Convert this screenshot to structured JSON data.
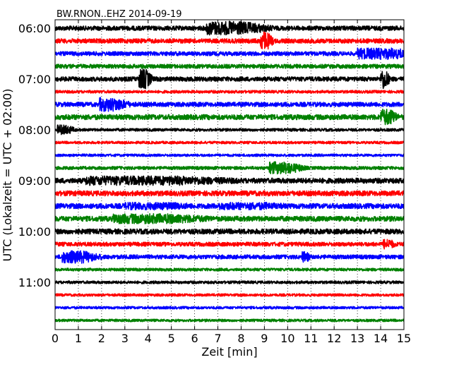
{
  "chart_data": {
    "type": "line",
    "title": "BW.RNON..EHZ 2014-09-19",
    "xlabel": "Zeit  [min]",
    "ylabel": "UTC (Lokalzeit = UTC + 02:00)",
    "xlim": [
      0,
      15
    ],
    "x_ticks": [
      0,
      1,
      2,
      3,
      4,
      5,
      6,
      7,
      8,
      9,
      10,
      11,
      12,
      13,
      14,
      15
    ],
    "y_tick_labels": [
      "06:00",
      "07:00",
      "08:00",
      "09:00",
      "10:00",
      "11:00"
    ],
    "start_time": "06:00",
    "trace_interval_min": 15,
    "grid": "vertical dotted",
    "color_cycle": [
      "#000000",
      "#ff0000",
      "#0000ff",
      "#008000"
    ],
    "traces": [
      {
        "start": "06:00",
        "color": "#000000",
        "amp": 0.35,
        "events": [
          [
            6.5,
            8.0,
            1.1
          ]
        ]
      },
      {
        "start": "06:15",
        "color": "#ff0000",
        "amp": 0.35,
        "events": [
          [
            8.8,
            9.1,
            1.5
          ]
        ]
      },
      {
        "start": "06:30",
        "color": "#0000ff",
        "amp": 0.32,
        "events": [
          [
            13.0,
            14.5,
            0.9
          ]
        ]
      },
      {
        "start": "06:45",
        "color": "#008000",
        "amp": 0.32,
        "events": []
      },
      {
        "start": "07:00",
        "color": "#000000",
        "amp": 0.35,
        "events": [
          [
            3.6,
            3.9,
            1.6
          ],
          [
            14.0,
            14.2,
            1.6
          ]
        ]
      },
      {
        "start": "07:15",
        "color": "#ff0000",
        "amp": 0.22,
        "events": []
      },
      {
        "start": "07:30",
        "color": "#0000ff",
        "amp": 0.35,
        "events": [
          [
            1.9,
            2.6,
            1.1
          ]
        ]
      },
      {
        "start": "07:45",
        "color": "#008000",
        "amp": 0.4,
        "events": [
          [
            14.0,
            14.4,
            1.3
          ]
        ]
      },
      {
        "start": "08:00",
        "color": "#000000",
        "amp": 0.22,
        "events": [
          [
            0.1,
            0.5,
            0.8
          ]
        ]
      },
      {
        "start": "08:15",
        "color": "#ff0000",
        "amp": 0.2,
        "events": []
      },
      {
        "start": "08:30",
        "color": "#0000ff",
        "amp": 0.2,
        "events": []
      },
      {
        "start": "08:45",
        "color": "#008000",
        "amp": 0.25,
        "events": [
          [
            9.2,
            10.0,
            1.0
          ]
        ]
      },
      {
        "start": "09:00",
        "color": "#000000",
        "amp": 0.4,
        "events": [
          [
            1.3,
            5.3,
            0.75
          ]
        ]
      },
      {
        "start": "09:15",
        "color": "#ff0000",
        "amp": 0.4,
        "events": []
      },
      {
        "start": "09:30",
        "color": "#0000ff",
        "amp": 0.4,
        "events": [
          [
            3.0,
            5.0,
            0.6
          ],
          [
            7.0,
            9.0,
            0.6
          ]
        ]
      },
      {
        "start": "09:45",
        "color": "#008000",
        "amp": 0.4,
        "events": [
          [
            2.5,
            5.0,
            0.8
          ]
        ]
      },
      {
        "start": "10:00",
        "color": "#000000",
        "amp": 0.4,
        "events": []
      },
      {
        "start": "10:15",
        "color": "#ff0000",
        "amp": 0.32,
        "events": [
          [
            14.1,
            14.4,
            0.8
          ]
        ]
      },
      {
        "start": "10:30",
        "color": "#0000ff",
        "amp": 0.32,
        "events": [
          [
            0.3,
            1.2,
            1.0
          ],
          [
            10.6,
            10.8,
            0.9
          ]
        ]
      },
      {
        "start": "10:45",
        "color": "#008000",
        "amp": 0.22,
        "events": []
      },
      {
        "start": "11:00",
        "color": "#000000",
        "amp": 0.22,
        "events": []
      },
      {
        "start": "11:15",
        "color": "#ff0000",
        "amp": 0.2,
        "events": []
      },
      {
        "start": "11:30",
        "color": "#0000ff",
        "amp": 0.2,
        "events": []
      },
      {
        "start": "11:45",
        "color": "#008000",
        "amp": 0.2,
        "events": []
      }
    ]
  }
}
